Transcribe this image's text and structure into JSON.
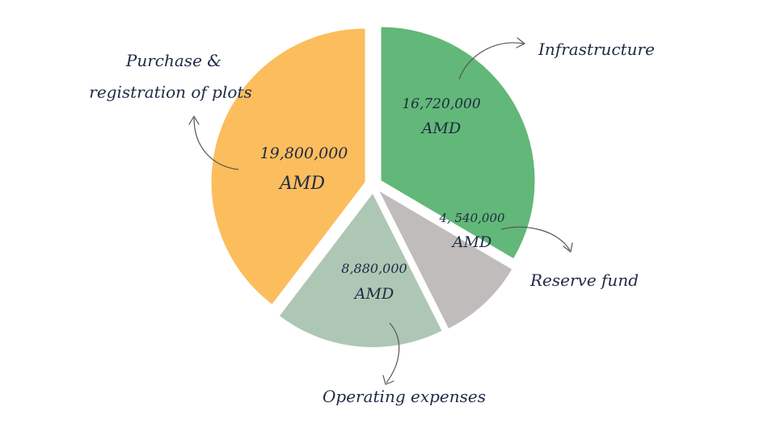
{
  "chart_data": {
    "type": "pie",
    "title": "",
    "unit": "AMD",
    "slices": [
      {
        "label": "Infrastructure",
        "value": 16720000,
        "value_text": "16,720,000",
        "unit_text": "AMD",
        "color": "#62b878"
      },
      {
        "label": "Reserve fund",
        "value": 4540000,
        "value_text": "4, 540,000",
        "unit_text": "AMD",
        "color": "#bfbcbb"
      },
      {
        "label": "Operating expenses",
        "value": 8880000,
        "value_text": "8,880,000",
        "unit_text": "AMD",
        "color": "#aec7b4"
      },
      {
        "label": "Purchase & registration of plots",
        "label_lines": [
          "Purchase &",
          "registration of plots"
        ],
        "value": 19800000,
        "value_text": "19,800,000",
        "unit_text": "AMD",
        "color": "#fcbd5d"
      }
    ],
    "legend": "none",
    "exploded": true
  }
}
